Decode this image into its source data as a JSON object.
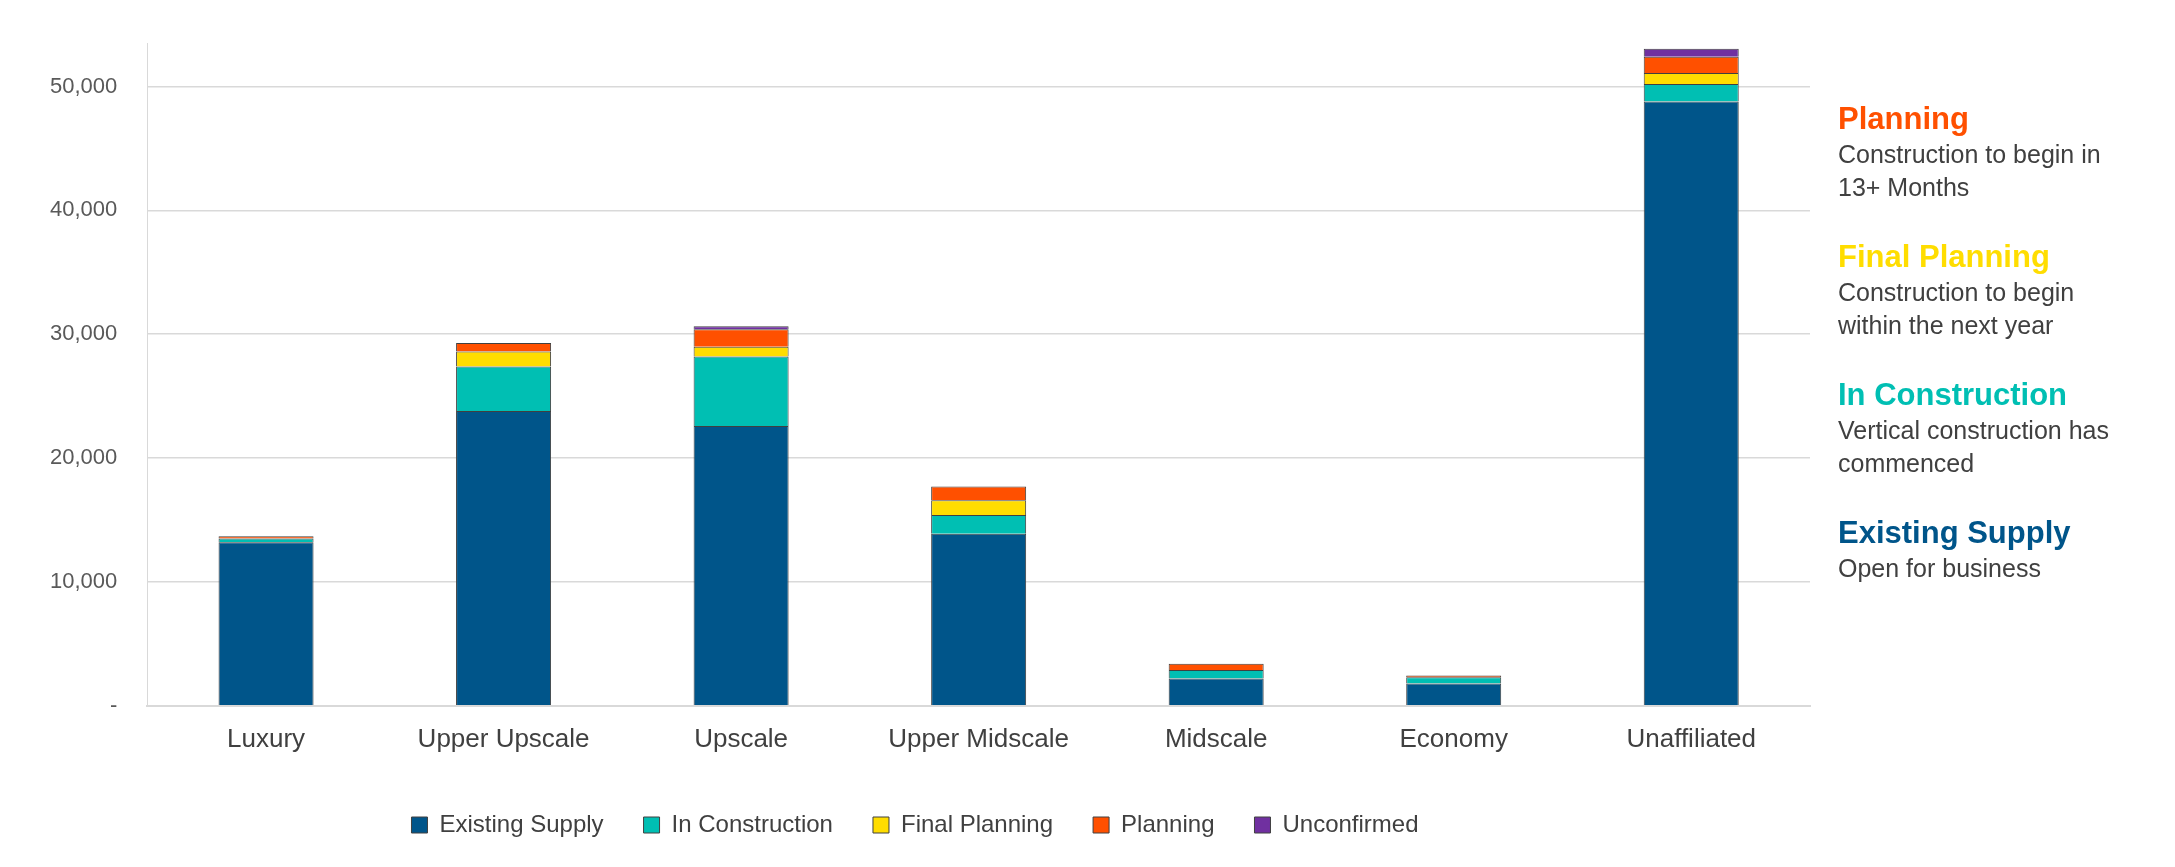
{
  "chart_data": {
    "type": "bar",
    "stacked": true,
    "categories": [
      "Luxury",
      "Upper Upscale",
      "Upscale",
      "Upper Midscale",
      "Midscale",
      "Economy",
      "Unaffiliated"
    ],
    "series": [
      {
        "name": "Existing Supply",
        "color": "#00558a",
        "values": [
          13200,
          23800,
          22600,
          13900,
          2200,
          1800,
          48800
        ]
      },
      {
        "name": "In Construction",
        "color": "#00bfb3",
        "values": [
          300,
          3600,
          5600,
          1500,
          700,
          500,
          1400
        ]
      },
      {
        "name": "Final Planning",
        "color": "#ffdd00",
        "values": [
          null,
          1200,
          800,
          1200,
          null,
          null,
          900
        ]
      },
      {
        "name": "Planning",
        "color": "#ff5000",
        "values": [
          200,
          700,
          1400,
          1100,
          500,
          150,
          1300
        ]
      },
      {
        "name": "Unconfirmed",
        "color": "#7030a0",
        "values": [
          null,
          null,
          250,
          null,
          null,
          null,
          650
        ]
      }
    ],
    "ylim": [
      0,
      53500
    ],
    "yticks": [
      {
        "value": 0,
        "label": "-"
      },
      {
        "value": 10000,
        "label": "10,000"
      },
      {
        "value": 20000,
        "label": "20,000"
      },
      {
        "value": 30000,
        "label": "30,000"
      },
      {
        "value": 40000,
        "label": "40,000"
      },
      {
        "value": 50000,
        "label": "50,000"
      }
    ],
    "grid": "y",
    "legend": "bottom",
    "annotations": [
      "Construction to begin in 13+ Months",
      "Construction to begin within the next year",
      "Vertical construction has commenced",
      "Open for business"
    ]
  }
}
